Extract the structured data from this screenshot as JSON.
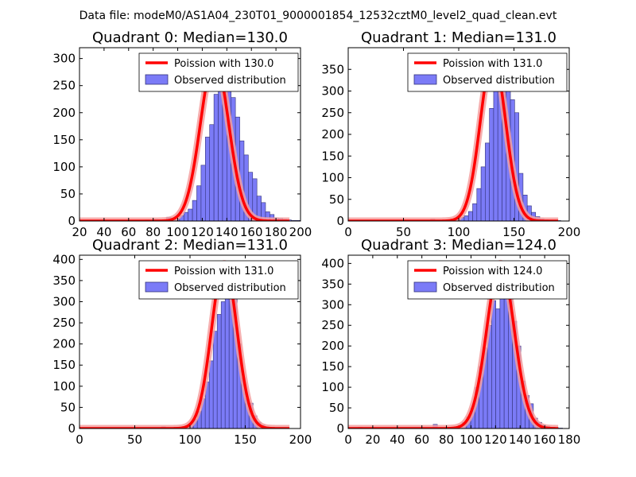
{
  "suptitle": "Data file: modeM0/AS1A04_230T01_9000001854_12532cztM0_level2_quad_clean.evt",
  "colors": {
    "bars": "#7b7bf7",
    "bar_edge": "#33337a",
    "poisson": "#ff0000",
    "poisson_glow": "#f5a0a0"
  },
  "chart_data": [
    {
      "type": "bar",
      "title": "Quadrant 0: Median=130.0",
      "xlim": [
        20,
        200
      ],
      "xticks": [
        20,
        40,
        60,
        80,
        100,
        120,
        140,
        160,
        180,
        200
      ],
      "ylim": [
        0,
        320
      ],
      "yticks": [
        0,
        50,
        100,
        150,
        200,
        250,
        300
      ],
      "legend": {
        "location": "top-right",
        "line_label": "Poission with 130.0",
        "bar_label": "Observed distribution"
      },
      "bins": {
        "start": 35,
        "width": 3.5
      },
      "values": [
        1,
        0,
        0,
        0,
        0,
        0,
        0,
        0,
        0,
        1,
        0,
        2,
        1,
        3,
        2,
        0,
        7,
        2,
        4,
        10,
        16,
        22,
        38,
        65,
        103,
        155,
        178,
        234,
        260,
        270,
        262,
        228,
        192,
        148,
        122,
        90,
        78,
        46,
        34,
        17,
        12,
        6,
        5,
        3,
        2,
        1,
        1,
        0,
        0,
        0,
        0
      ],
      "poisson_mean": 130.0,
      "poisson_peak": 300
    },
    {
      "type": "bar",
      "title": "Quadrant 1: Median=131.0",
      "xlim": [
        0,
        200
      ],
      "xticks": [
        0,
        50,
        100,
        150,
        200
      ],
      "ylim": [
        0,
        400
      ],
      "yticks": [
        0,
        50,
        100,
        150,
        200,
        250,
        300,
        350
      ],
      "legend": {
        "location": "top-right",
        "line_label": "Poission with 131.0",
        "bar_label": "Observed distribution"
      },
      "bins": {
        "start": 10,
        "width": 3.8
      },
      "values": [
        1,
        0,
        0,
        0,
        0,
        0,
        0,
        0,
        0,
        0,
        0,
        0,
        0,
        0,
        0,
        0,
        0,
        4,
        0,
        1,
        0,
        1,
        2,
        5,
        8,
        12,
        22,
        40,
        75,
        125,
        180,
        260,
        300,
        350,
        375,
        330,
        280,
        250,
        110,
        60,
        35,
        20,
        10,
        5,
        3,
        2,
        1,
        1,
        0
      ],
      "poisson_mean": 131.0,
      "poisson_peak": 380
    },
    {
      "type": "bar",
      "title": "Quadrant 2: Median=131.0",
      "xlim": [
        0,
        200
      ],
      "xticks": [
        0,
        50,
        100,
        150,
        200
      ],
      "ylim": [
        0,
        410
      ],
      "yticks": [
        0,
        50,
        100,
        150,
        200,
        250,
        300,
        350,
        400
      ],
      "legend": {
        "location": "top-right",
        "line_label": "Poission with 131.0",
        "bar_label": "Observed distribution"
      },
      "bins": {
        "start": 13,
        "width": 3.6
      },
      "values": [
        1,
        0,
        0,
        0,
        0,
        0,
        0,
        0,
        0,
        0,
        0,
        0,
        0,
        0,
        0,
        0,
        0,
        4,
        0,
        1,
        0,
        1,
        2,
        6,
        10,
        22,
        40,
        70,
        110,
        160,
        230,
        270,
        300,
        350,
        370,
        320,
        200,
        120,
        70,
        60,
        30,
        15,
        8,
        4,
        2,
        1,
        1,
        0,
        0,
        0
      ],
      "poisson_mean": 131.0,
      "poisson_peak": 390
    },
    {
      "type": "bar",
      "title": "Quadrant 3: Median=124.0",
      "xlim": [
        0,
        180
      ],
      "xticks": [
        0,
        20,
        40,
        60,
        80,
        100,
        120,
        140,
        160,
        180
      ],
      "ylim": [
        0,
        420
      ],
      "yticks": [
        0,
        50,
        100,
        150,
        200,
        250,
        300,
        350,
        400
      ],
      "legend": {
        "location": "top-right",
        "line_label": "Poission with 124.0",
        "bar_label": "Observed distribution"
      },
      "bins": {
        "start": 8,
        "width": 3.4
      },
      "values": [
        3,
        0,
        0,
        0,
        0,
        0,
        0,
        0,
        0,
        0,
        0,
        0,
        0,
        0,
        0,
        0,
        0,
        0,
        10,
        2,
        1,
        0,
        2,
        4,
        8,
        15,
        28,
        50,
        100,
        150,
        195,
        250,
        310,
        290,
        330,
        380,
        340,
        260,
        200,
        115,
        80,
        60,
        25,
        15,
        8,
        5,
        3,
        2,
        1
      ],
      "poisson_mean": 124.0,
      "poisson_peak": 400
    }
  ]
}
